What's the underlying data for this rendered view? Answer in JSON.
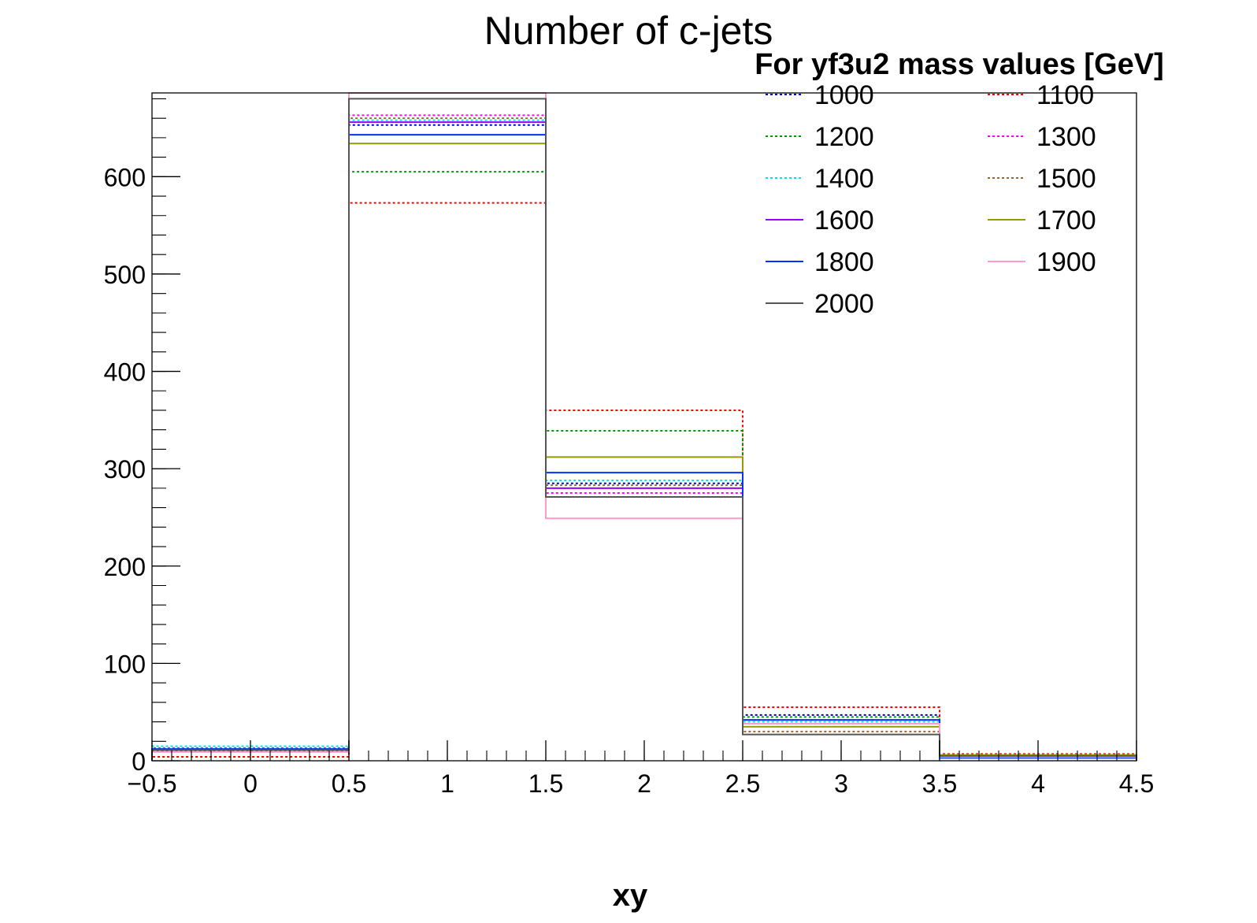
{
  "chart_data": {
    "type": "step-histogram",
    "title": "Number of c-jets",
    "xlabel": "xy",
    "ylabel": "",
    "xlim": [
      -0.5,
      4.5
    ],
    "ylim": [
      0,
      686
    ],
    "x_ticks": [
      -0.5,
      0,
      0.5,
      1,
      1.5,
      2,
      2.5,
      3,
      3.5,
      4,
      4.5
    ],
    "x_tick_labels": [
      "−0.5",
      "0",
      "0.5",
      "1",
      "1.5",
      "2",
      "2.5",
      "3",
      "3.5",
      "4",
      "4.5"
    ],
    "y_ticks": [
      0,
      100,
      200,
      300,
      400,
      500,
      600
    ],
    "y_tick_labels": [
      "0",
      "100",
      "200",
      "300",
      "400",
      "500",
      "600"
    ],
    "bin_edges": [
      -0.5,
      0.5,
      1.5,
      2.5,
      3.5,
      4.5
    ],
    "grid": false,
    "legend": {
      "header": "For yf3u2 mass values [GeV]",
      "position": "top-right",
      "columns": 2
    },
    "series": [
      {
        "name": "1000",
        "color": "#0000cc",
        "dash": "dotted",
        "values": [
          13,
          653,
          285,
          47,
          5
        ]
      },
      {
        "name": "1100",
        "color": "#ff0000",
        "dash": "dotted",
        "values": [
          4,
          573,
          360,
          55,
          7
        ]
      },
      {
        "name": "1200",
        "color": "#009900",
        "dash": "dotted",
        "values": [
          12,
          605,
          339,
          45,
          5
        ]
      },
      {
        "name": "1300",
        "color": "#ff00ff",
        "dash": "dotted",
        "values": [
          10,
          663,
          275,
          42,
          5
        ]
      },
      {
        "name": "1400",
        "color": "#00e5e5",
        "dash": "dotted",
        "values": [
          15,
          658,
          288,
          40,
          6
        ]
      },
      {
        "name": "1500",
        "color": "#996633",
        "dash": "dotted",
        "values": [
          13,
          660,
          283,
          30,
          4
        ]
      },
      {
        "name": "1600",
        "color": "#9900ff",
        "dash": "solid",
        "values": [
          11,
          656,
          280,
          38,
          4
        ]
      },
      {
        "name": "1700",
        "color": "#999900",
        "dash": "solid",
        "values": [
          12,
          634,
          312,
          35,
          6
        ]
      },
      {
        "name": "1800",
        "color": "#0033ff",
        "dash": "solid",
        "values": [
          12,
          643,
          296,
          42,
          3
        ]
      },
      {
        "name": "1900",
        "color": "#ff99cc",
        "dash": "solid",
        "values": [
          9,
          686,
          249,
          38,
          4
        ]
      },
      {
        "name": "2000",
        "color": "#555555",
        "dash": "solid",
        "values": [
          11,
          680,
          271,
          27,
          5
        ]
      }
    ]
  }
}
